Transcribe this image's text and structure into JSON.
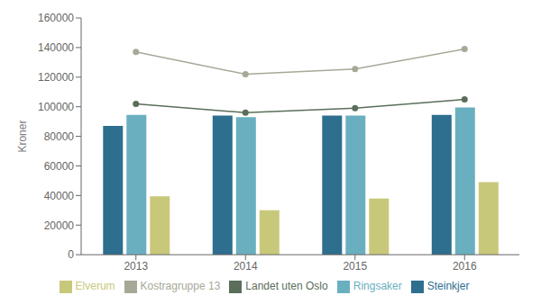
{
  "chart_data": {
    "type": "bar",
    "categories": [
      "2013",
      "2014",
      "2015",
      "2016"
    ],
    "ylabel": "Kroner",
    "ylim": [
      0,
      160000
    ],
    "yticks": [
      0,
      20000,
      40000,
      60000,
      80000,
      100000,
      120000,
      140000,
      160000
    ],
    "grid": false,
    "legend": "bottom",
    "series": [
      {
        "name": "Steinkjer",
        "type": "bar",
        "color": "#2e6e8e",
        "values": [
          87000,
          94000,
          94000,
          94500
        ]
      },
      {
        "name": "Ringsaker",
        "type": "bar",
        "color": "#6aafc0",
        "values": [
          94500,
          93000,
          94000,
          99500
        ]
      },
      {
        "name": "Elverum",
        "type": "bar",
        "color": "#c8c87a",
        "values": [
          39500,
          30000,
          38000,
          49000
        ]
      },
      {
        "name": "Landet uten Oslo",
        "type": "line",
        "color": "#5a6e5a",
        "marker": "circle",
        "values": [
          102000,
          96000,
          99000,
          105000
        ]
      },
      {
        "name": "Kostragruppe 13",
        "type": "line",
        "color": "#a8a898",
        "marker": "circle",
        "values": [
          137000,
          122000,
          125500,
          139000
        ]
      }
    ]
  }
}
